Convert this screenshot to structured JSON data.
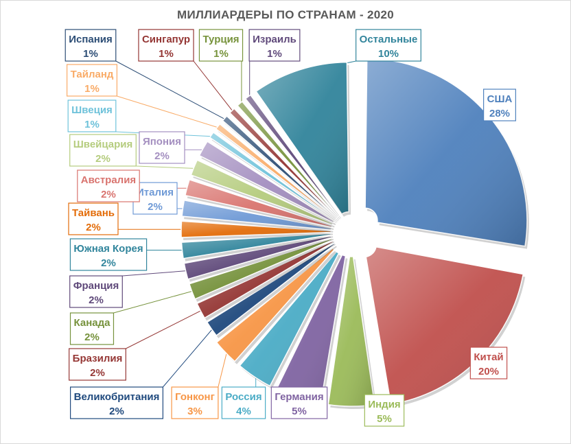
{
  "chart_data": {
    "type": "pie",
    "title": "МИЛЛИАРДЕРЫ ПО СТРАНАМ - 2020",
    "exploded": true,
    "slices": [
      {
        "name": "США",
        "value": 28,
        "label": "28%",
        "color": "#4f81bd"
      },
      {
        "name": "Китай",
        "value": 20,
        "label": "20%",
        "color": "#c0504d"
      },
      {
        "name": "Индия",
        "value": 5,
        "label": "5%",
        "color": "#9bbb59"
      },
      {
        "name": "Германия",
        "value": 5,
        "label": "5%",
        "color": "#8064a2"
      },
      {
        "name": "Россия",
        "value": 4,
        "label": "4%",
        "color": "#4bacc6"
      },
      {
        "name": "Гонконг",
        "value": 3,
        "label": "3%",
        "color": "#f79646"
      },
      {
        "name": "Великобритания",
        "value": 2,
        "label": "2%",
        "color": "#1f497d"
      },
      {
        "name": "Бразилия",
        "value": 2,
        "label": "2%",
        "color": "#953735"
      },
      {
        "name": "Канада",
        "value": 2,
        "label": "2%",
        "color": "#76923c"
      },
      {
        "name": "Франция",
        "value": 2,
        "label": "2%",
        "color": "#5f497a"
      },
      {
        "name": "Южная Корея",
        "value": 2,
        "label": "2%",
        "color": "#31859c"
      },
      {
        "name": "Тайвань",
        "value": 2,
        "label": "2%",
        "color": "#e36c09"
      },
      {
        "name": "Италия",
        "value": 2,
        "label": "2%",
        "color": "#6f9ad6"
      },
      {
        "name": "Австралия",
        "value": 2,
        "label": "2%",
        "color": "#d9746f"
      },
      {
        "name": "Швейцария",
        "value": 2,
        "label": "2%",
        "color": "#b5cc7e"
      },
      {
        "name": "Япония",
        "value": 2,
        "label": "2%",
        "color": "#a48fc0"
      },
      {
        "name": "Швеция",
        "value": 1,
        "label": "1%",
        "color": "#6ec2da"
      },
      {
        "name": "Тайланд",
        "value": 1,
        "label": "1%",
        "color": "#f9ab67"
      },
      {
        "name": "Испания",
        "value": 1,
        "label": "1%",
        "color": "#2c4d75"
      },
      {
        "name": "Сингапур",
        "value": 1,
        "label": "1%",
        "color": "#943634"
      },
      {
        "name": "Турция",
        "value": 1,
        "label": "1%",
        "color": "#77933c"
      },
      {
        "name": "Израиль",
        "value": 1,
        "label": "1%",
        "color": "#604a7b"
      },
      {
        "name": "Остальные",
        "value": 10,
        "label": "10%",
        "color": "#31849b"
      }
    ]
  }
}
